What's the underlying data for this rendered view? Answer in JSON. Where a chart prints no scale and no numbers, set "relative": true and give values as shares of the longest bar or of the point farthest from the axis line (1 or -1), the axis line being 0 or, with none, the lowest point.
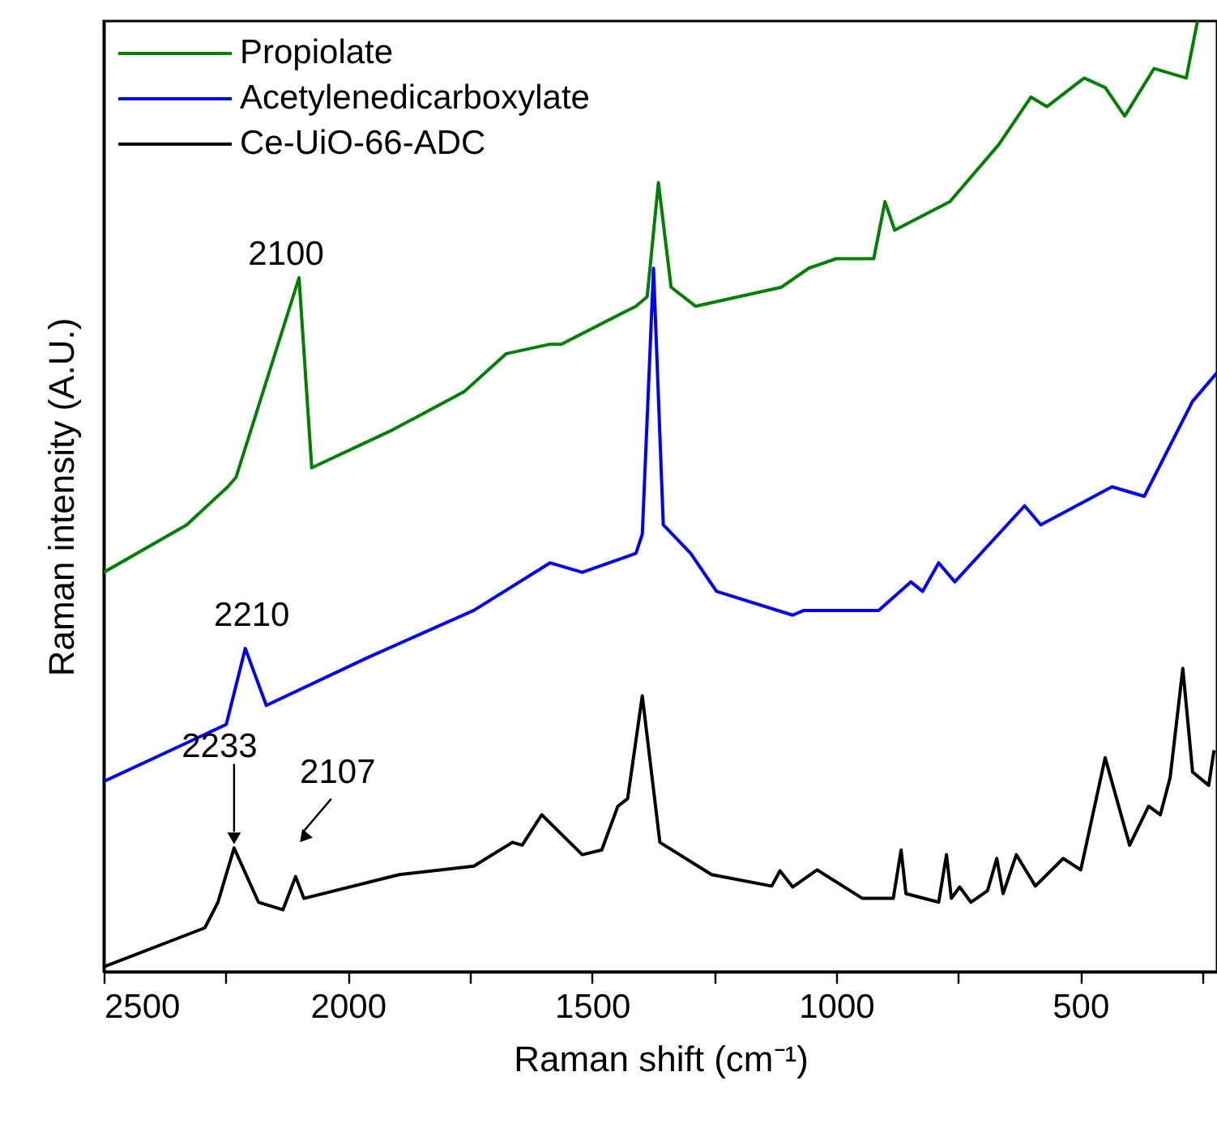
{
  "chart_data": {
    "type": "line",
    "relative": true,
    "xlabel": "Raman shift (cm⁻¹)",
    "ylabel": "Raman intensity (A.U.)",
    "xlim": [
      2500,
      220
    ],
    "xticks": [
      2500,
      {
        "value": 2250,
        "label": null
      },
      2000,
      {
        "value": 1750,
        "label": null
      },
      1500,
      {
        "value": 1250,
        "label": null
      },
      1000,
      {
        "value": 750,
        "label": null
      },
      500,
      {
        "value": 250,
        "label": null
      }
    ],
    "legend": "top left",
    "marker": "none",
    "line_style": "solid",
    "annotations": [
      {
        "text": "2100",
        "x": 2100,
        "y": 0.73
      },
      {
        "text": "2210",
        "x": 2210,
        "y": 0.34
      },
      {
        "text": "2233",
        "x": 2233,
        "y": 0.13
      },
      {
        "text": "2107",
        "x": 2107,
        "y": 0.1
      }
    ],
    "series": [
      {
        "name": "Propiolate",
        "color": "#008000",
        "x": [
          2500,
          2330,
          2246,
          2229,
          2100,
          2074,
          1908,
          1762,
          1676,
          1586,
          1563,
          1410,
          1387,
          1364,
          1338,
          1288,
          1112,
          1056,
          1000,
          923,
          900,
          880,
          767,
          667,
          601,
          568,
          492,
          449,
          409,
          349,
          283,
          260
        ],
        "values": [
          0.42,
          0.47,
          0.51,
          0.52,
          0.73,
          0.53,
          0.57,
          0.61,
          0.65,
          0.66,
          0.66,
          0.7,
          0.71,
          0.83,
          0.72,
          0.7,
          0.72,
          0.74,
          0.75,
          0.75,
          0.81,
          0.78,
          0.81,
          0.87,
          0.92,
          0.91,
          0.94,
          0.93,
          0.9,
          0.95,
          0.94,
          1.0
        ]
      },
      {
        "name": "Acetylenedicarboxylate",
        "color": "#0000ff",
        "x": [
          2500,
          2249,
          2210,
          2167,
          1961,
          1742,
          1586,
          1520,
          1410,
          1397,
          1374,
          1354,
          1298,
          1245,
          1089,
          1066,
          913,
          847,
          823,
          790,
          757,
          614,
          581,
          435,
          369,
          270,
          220
        ],
        "values": [
          0.2,
          0.26,
          0.34,
          0.28,
          0.33,
          0.38,
          0.43,
          0.42,
          0.44,
          0.46,
          0.74,
          0.47,
          0.44,
          0.4,
          0.375,
          0.38,
          0.38,
          0.41,
          0.4,
          0.43,
          0.41,
          0.49,
          0.47,
          0.51,
          0.5,
          0.6,
          0.63
        ]
      },
      {
        "name": "Ce-UiO-66-ADC",
        "color": "#000000",
        "x": [
          2500,
          2293,
          2266,
          2233,
          2183,
          2133,
          2107,
          2090,
          1895,
          1742,
          1663,
          1643,
          1603,
          1520,
          1480,
          1447,
          1427,
          1397,
          1361,
          1255,
          1132,
          1115,
          1089,
          1039,
          946,
          883,
          867,
          857,
          790,
          774,
          764,
          747,
          724,
          690,
          671,
          658,
          631,
          592,
          535,
          499,
          449,
          399,
          360,
          336,
          316,
          290,
          270,
          237,
          226
        ],
        "values": [
          0.005,
          0.046,
          0.073,
          0.13,
          0.073,
          0.065,
          0.1,
          0.077,
          0.102,
          0.111,
          0.136,
          0.133,
          0.165,
          0.123,
          0.128,
          0.174,
          0.182,
          0.29,
          0.136,
          0.102,
          0.09,
          0.106,
          0.089,
          0.107,
          0.077,
          0.077,
          0.128,
          0.082,
          0.073,
          0.123,
          0.077,
          0.089,
          0.073,
          0.085,
          0.119,
          0.082,
          0.123,
          0.09,
          0.119,
          0.107,
          0.225,
          0.133,
          0.174,
          0.165,
          0.204,
          0.319,
          0.21,
          0.196,
          0.233
        ]
      }
    ]
  }
}
